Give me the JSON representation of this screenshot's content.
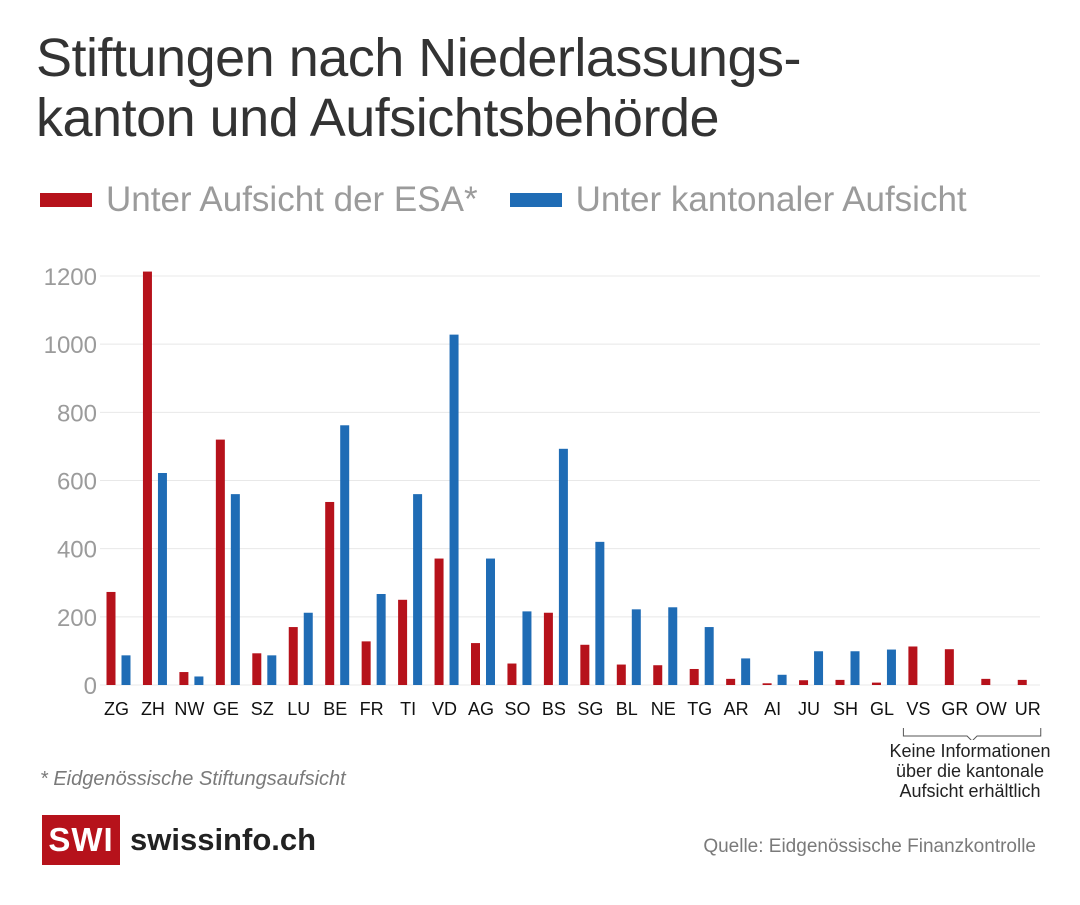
{
  "header": {
    "title_line1": "Stiftungen nach Niederlassungs-",
    "title_line2": "kanton und Aufsichtsbehörde"
  },
  "legend": {
    "esa_label": "Unter Aufsicht der ESA*",
    "cantonal_label": "Unter kantonaler Aufsicht"
  },
  "colors": {
    "esa": "#b6121b",
    "cantonal": "#1f6cb5",
    "grid": "#e8e8e8",
    "tick": "#9b9b9b"
  },
  "chart_data": {
    "type": "bar",
    "title": "Stiftungen nach Niederlassungskanton und Aufsichtsbehörde",
    "xlabel": "",
    "ylabel": "",
    "ylim": [
      0,
      1200
    ],
    "yticks": [
      0,
      200,
      400,
      600,
      800,
      1000,
      1200
    ],
    "grid": true,
    "categories": [
      "ZG",
      "ZH",
      "NW",
      "GE",
      "SZ",
      "LU",
      "BE",
      "FR",
      "TI",
      "VD",
      "AG",
      "SO",
      "BS",
      "SG",
      "BL",
      "NE",
      "TG",
      "AR",
      "AI",
      "JU",
      "SH",
      "GL",
      "VS",
      "GR",
      "OW",
      "UR"
    ],
    "series": [
      {
        "name": "Unter Aufsicht der ESA*",
        "values": [
          273,
          1213,
          38,
          720,
          93,
          170,
          537,
          128,
          250,
          371,
          123,
          63,
          212,
          118,
          60,
          58,
          47,
          18,
          5,
          14,
          15,
          7,
          113,
          105,
          18,
          15
        ]
      },
      {
        "name": "Unter kantonaler Aufsicht",
        "values": [
          87,
          622,
          25,
          560,
          87,
          212,
          762,
          267,
          560,
          1028,
          371,
          216,
          693,
          420,
          222,
          228,
          170,
          78,
          30,
          99,
          99,
          104,
          null,
          null,
          null,
          null
        ]
      }
    ],
    "annotation": "Keine Informationen über die kantonale Aufsicht erhältlich"
  },
  "annotation_lines": [
    "Keine Informationen",
    "über die kantonale",
    "Aufsicht erhältlich"
  ],
  "footnote": "* Eidgenössische Stiftungsaufsicht",
  "logo": {
    "box_text": "SWI",
    "brand": "swissinfo.ch"
  },
  "source": "Quelle: Eidgenössische Finanzkontrolle"
}
